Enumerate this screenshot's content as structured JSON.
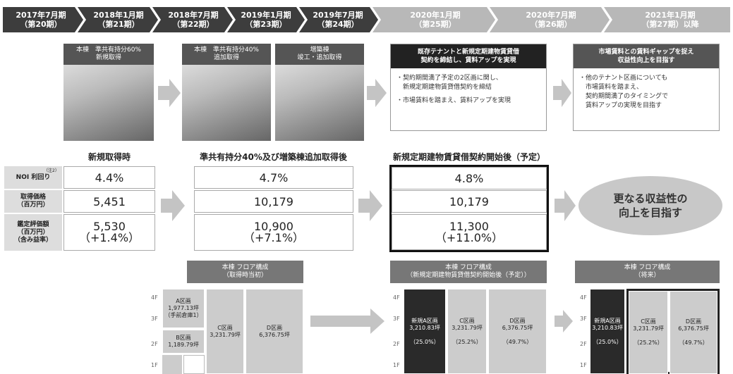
{
  "timeline": [
    {
      "period": "2017年7月期",
      "term": "（第20期）"
    },
    {
      "period": "2018年1月期",
      "term": "（第21期）"
    },
    {
      "period": "2018年7月期",
      "term": "（第22期）"
    },
    {
      "period": "2019年1月期",
      "term": "（第23期）"
    },
    {
      "period": "2019年7月期",
      "term": "（第24期）"
    },
    {
      "period": "2020年1月期",
      "term": "（第25期）"
    },
    {
      "period": "2020年7月期",
      "term": "（第26期）"
    },
    {
      "period": "2021年1月期",
      "term": "（第27期）以降"
    }
  ],
  "stages": [
    {
      "caption": [
        "本棟　準共有持分60%",
        "新規取得"
      ]
    },
    {
      "caption": [
        "本棟　準共有持分40%",
        "追加取得"
      ]
    },
    {
      "caption": [
        "増築棟",
        "竣工・追加取得"
      ]
    }
  ],
  "plans": [
    {
      "title": [
        "既存テナントと新規定期建物賃貸借",
        "契約を締結し、賃料アップを実現"
      ],
      "bullets": [
        [
          "・契約期間満了予定の2区画に関し、",
          "　新規定期建物賃貸借契約を締結"
        ],
        [
          "・市場賃料を踏まえ、賃料アップを実現"
        ]
      ]
    },
    {
      "title": [
        "市場賃料との賃料ギャップを捉え",
        "収益性向上を目指す"
      ],
      "bullets": [
        [
          "・他のテナント区画についても",
          "　市場賃料を踏まえ、",
          "　契約期間満了のタイミングで",
          "　賃料アップの実現を目指す"
        ]
      ]
    }
  ],
  "table": {
    "row_labels": [
      [
        "NOI 利回り"
      ],
      [
        "取得価格",
        "（百万円）"
      ],
      [
        "鑑定評価額",
        "（百万円）",
        "（含み益率）"
      ]
    ],
    "note": "（注2）",
    "columns": [
      {
        "header": "新規取得時",
        "noi": "4.4%",
        "price": "5,451",
        "appraisal": "5,530",
        "gain": "（+1.4%）"
      },
      {
        "header": "準共有持分40%及び増築棟追加取得後",
        "noi": "4.7%",
        "price": "10,179",
        "appraisal": "10,900",
        "gain": "（+7.1%）"
      },
      {
        "header": "新規定期建物賃貸借契約開始後（予定）",
        "noi": "4.8%",
        "price": "10,179",
        "appraisal": "11,300",
        "gain": "（+11.0%）"
      }
    ]
  },
  "goal": [
    "更なる収益性の",
    "向上を目指す"
  ],
  "floors": {
    "levels": [
      "4F",
      "3F",
      "2F",
      "1F"
    ],
    "panels": [
      {
        "title": "本棟 フロア構成",
        "subtitle": "（取得時当初）",
        "blocks": [
          {
            "name": "A区画",
            "area": "1,977.13坪",
            "note": "（手前倉庫1）"
          },
          {
            "name": "B区画",
            "area": "1,189.79坪"
          },
          {
            "name": "C区画",
            "area": "3,231.79坪"
          },
          {
            "name": "D区画",
            "area": "6,376.75坪"
          }
        ]
      },
      {
        "title": "本棟 フロア構成",
        "subtitle": "（新規定期建物賃貸借契約開始後（予定））",
        "blocks": [
          {
            "name": "新規A区画",
            "area": "3,210.83坪",
            "share": "（25.0%）"
          },
          {
            "name": "C区画",
            "area": "3,231.79坪",
            "share": "（25.2%）"
          },
          {
            "name": "D区画",
            "area": "6,376.75坪",
            "share": "（49.7%）"
          }
        ]
      },
      {
        "title": "本棟 フロア構成",
        "subtitle": "（将来）",
        "blocks": [
          {
            "name": "新規A区画",
            "area": "3,210.83坪",
            "share": "（25.0%）"
          },
          {
            "name": "C区画",
            "area": "3,231.79坪",
            "share": "（25.2%）"
          },
          {
            "name": "D区画",
            "area": "6,376.75坪",
            "share": "（49.7%）"
          }
        ]
      }
    ]
  }
}
